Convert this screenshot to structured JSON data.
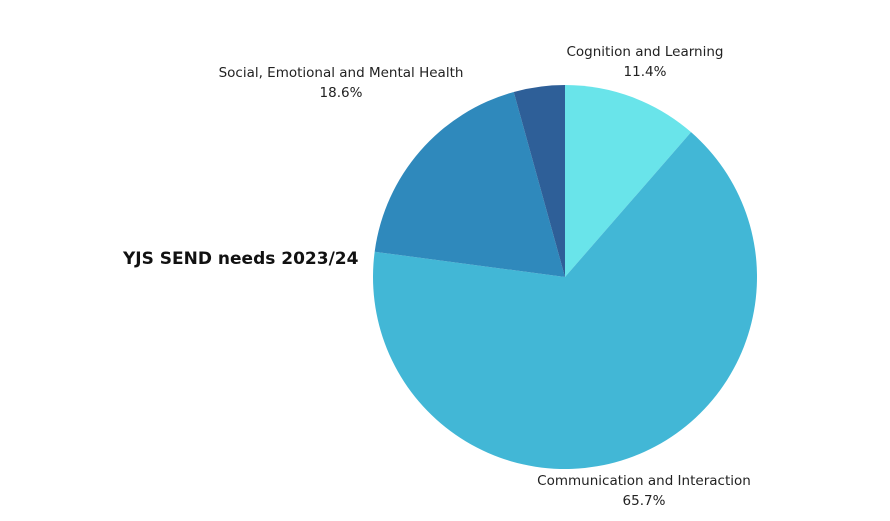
{
  "chart_data": {
    "type": "pie",
    "title": "YJS SEND needs 2023/24",
    "slices": [
      {
        "label": "Cognition and Learning",
        "value": 11.4,
        "value_label": "11.4%",
        "color": "#69e4ea"
      },
      {
        "label": "Communication and Interaction",
        "value": 65.7,
        "value_label": "65.7%",
        "color": "#42b7d6"
      },
      {
        "label": "Social, Emotional and Mental Health",
        "value": 18.6,
        "value_label": "18.6%",
        "color": "#2f89bc"
      },
      {
        "label": "",
        "value": 4.3,
        "value_label": "",
        "color": "#2e5f98"
      }
    ],
    "start_angle": "12 o'clock",
    "direction": "clockwise"
  }
}
